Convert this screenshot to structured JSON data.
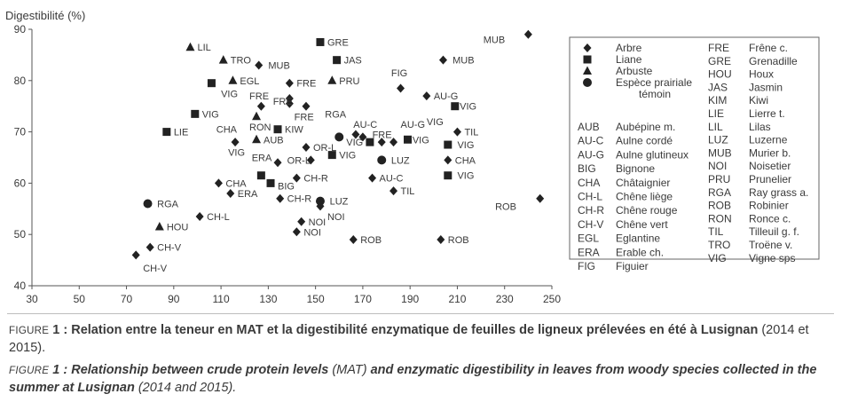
{
  "chart_data": {
    "type": "scatter",
    "ylabel": "Digestibilité (%)",
    "xlabel": "",
    "xlim": [
      30,
      250
    ],
    "ylim": [
      40,
      90
    ],
    "xticks": [
      30,
      50,
      70,
      90,
      110,
      130,
      150,
      170,
      190,
      210,
      230,
      250
    ],
    "yticks": [
      40,
      50,
      60,
      70,
      80,
      90
    ],
    "grid": false,
    "legend_position": "right",
    "marker_legend": [
      {
        "marker": "diamond",
        "label": "Arbre"
      },
      {
        "marker": "square",
        "label": "Liane"
      },
      {
        "marker": "triangle",
        "label": "Arbuste"
      },
      {
        "marker": "circle",
        "label": "Espèce prairiale témoin"
      }
    ],
    "abbreviations": [
      {
        "code": "AUB",
        "name": "Aubépine m."
      },
      {
        "code": "AU-C",
        "name": "Aulne cordé"
      },
      {
        "code": "AU-G",
        "name": "Aulne glutineux"
      },
      {
        "code": "BIG",
        "name": "Bignone"
      },
      {
        "code": "CHA",
        "name": "Châtaignier"
      },
      {
        "code": "CH-L",
        "name": "Chêne liège"
      },
      {
        "code": "CH-R",
        "name": "Chêne rouge"
      },
      {
        "code": "CH-V",
        "name": "Chêne vert"
      },
      {
        "code": "EGL",
        "name": "Eglantine"
      },
      {
        "code": "ERA",
        "name": "Erable ch."
      },
      {
        "code": "FIG",
        "name": "Figuier"
      },
      {
        "code": "FRE",
        "name": "Frêne c."
      },
      {
        "code": "GRE",
        "name": "Grenadille"
      },
      {
        "code": "HOU",
        "name": "Houx"
      },
      {
        "code": "JAS",
        "name": "Jasmin"
      },
      {
        "code": "KIM",
        "name": "Kiwi"
      },
      {
        "code": "LIE",
        "name": "Lierre t."
      },
      {
        "code": "LIL",
        "name": "Lilas"
      },
      {
        "code": "LUZ",
        "name": "Luzerne"
      },
      {
        "code": "MUB",
        "name": "Murier b."
      },
      {
        "code": "NOI",
        "name": "Noisetier"
      },
      {
        "code": "PRU",
        "name": "Prunelier"
      },
      {
        "code": "RGA",
        "name": "Ray grass a."
      },
      {
        "code": "ROB",
        "name": "Robinier"
      },
      {
        "code": "RON",
        "name": "Ronce c."
      },
      {
        "code": "TIL",
        "name": "Tilleuil g. f."
      },
      {
        "code": "TRO",
        "name": "Troëne v."
      },
      {
        "code": "VIG",
        "name": "Vigne sps"
      }
    ],
    "points": [
      {
        "label": "LIL",
        "marker": "triangle",
        "x": 97,
        "y": 86.5
      },
      {
        "label": "TRO",
        "marker": "triangle",
        "x": 111,
        "y": 84
      },
      {
        "label": "EGL",
        "marker": "triangle",
        "x": 115,
        "y": 80
      },
      {
        "label": "PRU",
        "marker": "triangle",
        "x": 157,
        "y": 80
      },
      {
        "label": "RON",
        "marker": "triangle",
        "x": 125,
        "y": 73
      },
      {
        "label": "AUB",
        "marker": "triangle",
        "x": 125,
        "y": 68.5
      },
      {
        "label": "HOU",
        "marker": "triangle",
        "x": 84,
        "y": 51.5
      },
      {
        "label": "GRE",
        "marker": "square",
        "x": 152,
        "y": 87.5
      },
      {
        "label": "JAS",
        "marker": "square",
        "x": 159,
        "y": 84
      },
      {
        "label": "VIG",
        "marker": "square",
        "x": 106,
        "y": 79.5
      },
      {
        "label": "VIG",
        "marker": "square",
        "x": 99,
        "y": 73.5
      },
      {
        "label": "LIE",
        "marker": "square",
        "x": 87,
        "y": 70
      },
      {
        "label": "KIW",
        "marker": "square",
        "x": 134,
        "y": 70.5
      },
      {
        "label": "VIG",
        "marker": "square",
        "x": 157,
        "y": 65.5
      },
      {
        "label": "VIG",
        "marker": "square",
        "x": 173,
        "y": 68
      },
      {
        "label": "VIG",
        "marker": "square",
        "x": 189,
        "y": 68.5
      },
      {
        "label": "VIG",
        "marker": "square",
        "x": 209,
        "y": 75
      },
      {
        "label": "VIG",
        "marker": "square",
        "x": 206,
        "y": 67.5
      },
      {
        "label": "VIG",
        "marker": "square",
        "x": 206,
        "y": 61.5
      },
      {
        "label": "VIG",
        "marker": "square",
        "x": 127,
        "y": 61.5
      },
      {
        "label": "BIG",
        "marker": "square",
        "x": 131,
        "y": 60
      },
      {
        "label": "RGA",
        "marker": "circle",
        "x": 79,
        "y": 56
      },
      {
        "label": "RGA",
        "marker": "circle",
        "x": 160,
        "y": 69
      },
      {
        "label": "LUZ",
        "marker": "circle",
        "x": 178,
        "y": 64.5
      },
      {
        "label": "LUZ",
        "marker": "circle",
        "x": 152,
        "y": 56.5
      },
      {
        "label": "MUB",
        "marker": "diamond",
        "x": 240,
        "y": 89
      },
      {
        "label": "MUB",
        "marker": "diamond",
        "x": 126,
        "y": 83
      },
      {
        "label": "MUB",
        "marker": "diamond",
        "x": 204,
        "y": 84
      },
      {
        "label": "FIG",
        "marker": "diamond",
        "x": 186,
        "y": 78.5
      },
      {
        "label": "FRE",
        "marker": "diamond",
        "x": 139,
        "y": 79.5
      },
      {
        "label": "FRE",
        "marker": "diamond",
        "x": 127,
        "y": 75
      },
      {
        "label": "FRE",
        "marker": "diamond",
        "x": 139,
        "y": 76.5
      },
      {
        "label": "FRE",
        "marker": "diamond",
        "x": 139,
        "y": 75.5
      },
      {
        "label": "FRE",
        "marker": "diamond",
        "x": 146,
        "y": 75
      },
      {
        "label": "FRE",
        "marker": "diamond",
        "x": 178,
        "y": 68
      },
      {
        "label": "AU-G",
        "marker": "diamond",
        "x": 197,
        "y": 77
      },
      {
        "label": "AU-G",
        "marker": "diamond",
        "x": 183,
        "y": 68
      },
      {
        "label": "AU-C",
        "marker": "diamond",
        "x": 170,
        "y": 69
      },
      {
        "label": "AU-C",
        "marker": "diamond",
        "x": 174,
        "y": 61
      },
      {
        "label": "CHA",
        "marker": "diamond",
        "x": 116,
        "y": 68
      },
      {
        "label": "CHA",
        "marker": "diamond",
        "x": 109,
        "y": 60
      },
      {
        "label": "CHA",
        "marker": "diamond",
        "x": 206,
        "y": 64.5
      },
      {
        "label": "TIL",
        "marker": "diamond",
        "x": 210,
        "y": 70
      },
      {
        "label": "TIL",
        "marker": "diamond",
        "x": 183,
        "y": 58.5
      },
      {
        "label": "OR-L",
        "marker": "diamond",
        "x": 146,
        "y": 67
      },
      {
        "label": "OR-L",
        "marker": "diamond",
        "x": 148,
        "y": 64.5
      },
      {
        "label": "ERA",
        "marker": "diamond",
        "x": 134,
        "y": 64
      },
      {
        "label": "ERA",
        "marker": "diamond",
        "x": 114,
        "y": 58
      },
      {
        "label": "CH-R",
        "marker": "diamond",
        "x": 142,
        "y": 61
      },
      {
        "label": "CH-R",
        "marker": "diamond",
        "x": 135,
        "y": 57
      },
      {
        "label": "CH-L",
        "marker": "diamond",
        "x": 101,
        "y": 53.5
      },
      {
        "label": "CH-V",
        "marker": "diamond",
        "x": 74,
        "y": 46
      },
      {
        "label": "CH-V",
        "marker": "diamond",
        "x": 80,
        "y": 47.5
      },
      {
        "label": "NOI",
        "marker": "diamond",
        "x": 144,
        "y": 52.5
      },
      {
        "label": "NOI",
        "marker": "diamond",
        "x": 142,
        "y": 50.5
      },
      {
        "label": "NOI",
        "marker": "diamond",
        "x": 152,
        "y": 55.5
      },
      {
        "label": "ROB",
        "marker": "diamond",
        "x": 166,
        "y": 49
      },
      {
        "label": "ROB",
        "marker": "diamond",
        "x": 203,
        "y": 49
      },
      {
        "label": "ROB",
        "marker": "diamond",
        "x": 245,
        "y": 57
      },
      {
        "label": "VIG",
        "marker": "diamond",
        "x": 167,
        "y": 69.5
      }
    ],
    "point_labels": [
      {
        "text": "LIL",
        "x": 100,
        "y": 86.5
      },
      {
        "text": "TRO",
        "x": 114,
        "y": 84
      },
      {
        "text": "EGL",
        "x": 118,
        "y": 80
      },
      {
        "text": "PRU",
        "x": 160,
        "y": 80
      },
      {
        "text": "RON",
        "x": 122,
        "y": 71
      },
      {
        "text": "AUB",
        "x": 128,
        "y": 68.5
      },
      {
        "text": "HOU",
        "x": 87,
        "y": 51.5
      },
      {
        "text": "GRE",
        "x": 155,
        "y": 87.5
      },
      {
        "text": "JAS",
        "x": 162,
        "y": 84
      },
      {
        "text": "VIG",
        "x": 110,
        "y": 77.5
      },
      {
        "text": "VIG",
        "x": 102,
        "y": 73.5
      },
      {
        "text": "LIE",
        "x": 90,
        "y": 70
      },
      {
        "text": "KIW",
        "x": 137,
        "y": 70.5
      },
      {
        "text": "VIG",
        "x": 160,
        "y": 65.5
      },
      {
        "text": "VIG",
        "x": 191,
        "y": 68.5
      },
      {
        "text": "VIG",
        "x": 210,
        "y": 67.5
      },
      {
        "text": "VIG",
        "x": 210,
        "y": 61.5
      },
      {
        "text": "VIG",
        "x": 211,
        "y": 75
      },
      {
        "text": "VIG",
        "x": 197,
        "y": 72
      },
      {
        "text": "VIG",
        "x": 113,
        "y": 66
      },
      {
        "text": "VIG",
        "x": 163,
        "y": 68
      },
      {
        "text": "BIG",
        "x": 134,
        "y": 59.5
      },
      {
        "text": "RGA",
        "x": 83,
        "y": 56
      },
      {
        "text": "RGA",
        "x": 154,
        "y": 73.5
      },
      {
        "text": "LUZ",
        "x": 182,
        "y": 64.5
      },
      {
        "text": "LUZ",
        "x": 156,
        "y": 56.5
      },
      {
        "text": "MUB",
        "x": 221,
        "y": 88
      },
      {
        "text": "MUB",
        "x": 130,
        "y": 83
      },
      {
        "text": "MUB",
        "x": 208,
        "y": 84
      },
      {
        "text": "FIG",
        "x": 182,
        "y": 81.5
      },
      {
        "text": "FRE",
        "x": 142,
        "y": 79.5
      },
      {
        "text": "FRE",
        "x": 122,
        "y": 77
      },
      {
        "text": "FRE",
        "x": 132,
        "y": 76
      },
      {
        "text": "FRE",
        "x": 141,
        "y": 73
      },
      {
        "text": "FRE",
        "x": 174,
        "y": 69.5
      },
      {
        "text": "AU-G",
        "x": 200,
        "y": 77
      },
      {
        "text": "AU-G",
        "x": 186,
        "y": 71.5
      },
      {
        "text": "AU-C",
        "x": 166,
        "y": 71.5
      },
      {
        "text": "AU-C",
        "x": 177,
        "y": 61
      },
      {
        "text": "CHA",
        "x": 108,
        "y": 70.5
      },
      {
        "text": "CHA",
        "x": 112,
        "y": 60
      },
      {
        "text": "CHA",
        "x": 209,
        "y": 64.5
      },
      {
        "text": "TIL",
        "x": 213,
        "y": 70
      },
      {
        "text": "TIL",
        "x": 186,
        "y": 58.5
      },
      {
        "text": "OR-L",
        "x": 149,
        "y": 67
      },
      {
        "text": "OR-L",
        "x": 138,
        "y": 64.5
      },
      {
        "text": "ERA",
        "x": 123,
        "y": 65
      },
      {
        "text": "ERA",
        "x": 117,
        "y": 58
      },
      {
        "text": "CH-R",
        "x": 145,
        "y": 61
      },
      {
        "text": "CH-R",
        "x": 138,
        "y": 57
      },
      {
        "text": "CH-L",
        "x": 104,
        "y": 53.5
      },
      {
        "text": "CH-V",
        "x": 77,
        "y": 43.5
      },
      {
        "text": "CH-V",
        "x": 83,
        "y": 47.5
      },
      {
        "text": "NOI",
        "x": 147,
        "y": 52.5
      },
      {
        "text": "NOI",
        "x": 145,
        "y": 50.5
      },
      {
        "text": "NOI",
        "x": 155,
        "y": 53.5
      },
      {
        "text": "ROB",
        "x": 169,
        "y": 49
      },
      {
        "text": "ROB",
        "x": 206,
        "y": 49
      },
      {
        "text": "ROB",
        "x": 226,
        "y": 55.5
      }
    ]
  },
  "captions": {
    "fr_prefix": "Figure",
    "fr_number": "1 :",
    "fr_title": "Relation entre la teneur en MAT et la digestibilité enzymatique de feuilles de ligneux prélevées en été à Lusignan",
    "fr_suffix": "(2014 et 2015).",
    "en_prefix": "Figure",
    "en_number": "1 :",
    "en_title": "Relationship between crude protein levels",
    "en_mat": "(MAT)",
    "en_title2": "and enzymatic digestibility in leaves from woody species collected in the summer at Lusignan",
    "en_suffix": "(2014 and 2015)."
  },
  "colors": {
    "text": "#3a3a3a",
    "marker": "#222222",
    "axis": "#555555",
    "legend_border": "#666666"
  }
}
